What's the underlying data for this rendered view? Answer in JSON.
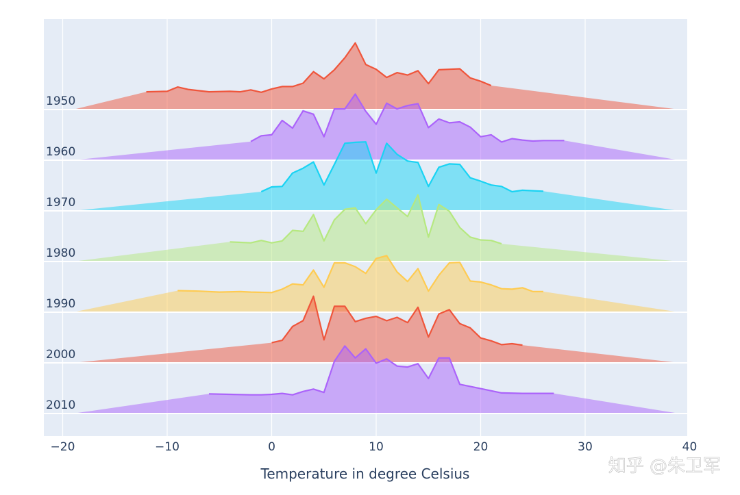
{
  "chart_data": {
    "type": "area",
    "xlabel": "Temperature in degree Celsius",
    "ylabel": "",
    "xlim": [
      -22,
      40
    ],
    "xticks": [
      -20,
      -10,
      0,
      10,
      20,
      30,
      40
    ],
    "xtick_labels": [
      "−20",
      "−10",
      "0",
      "10",
      "20",
      "30",
      "40"
    ],
    "grid": true,
    "ridge_envelope_x": [
      -19,
      39
    ],
    "series": [
      {
        "name": "1950",
        "color": "#EF553B",
        "x": [
          -12,
          -10,
          -9,
          -8,
          -6,
          -4,
          -3,
          -2,
          -1,
          0,
          1,
          2,
          3,
          4,
          5,
          6,
          7,
          8,
          9,
          10,
          11,
          12,
          13,
          14,
          15,
          16,
          17,
          18,
          19,
          20,
          21
        ],
        "y": [
          0.37,
          0.38,
          0.47,
          0.42,
          0.37,
          0.38,
          0.37,
          0.41,
          0.36,
          0.43,
          0.48,
          0.48,
          0.55,
          0.79,
          0.64,
          0.83,
          1.08,
          1.39,
          0.94,
          0.84,
          0.67,
          0.77,
          0.72,
          0.81,
          0.54,
          0.83,
          0.84,
          0.85,
          0.66,
          0.59,
          0.5
        ]
      },
      {
        "name": "1960",
        "color": "#AB63FA",
        "x": [
          -2,
          -1,
          0,
          1,
          2,
          3,
          4,
          5,
          6,
          7,
          8,
          9,
          10,
          11,
          12,
          13,
          14,
          15,
          16,
          17,
          18,
          19,
          20,
          21,
          22,
          23,
          24,
          25,
          26,
          27,
          28
        ],
        "y": [
          0.39,
          0.51,
          0.53,
          0.83,
          0.67,
          1.03,
          0.96,
          0.49,
          1.07,
          1.07,
          1.38,
          1.02,
          0.75,
          1.19,
          1.07,
          1.14,
          1.18,
          0.68,
          0.86,
          0.78,
          0.8,
          0.69,
          0.49,
          0.53,
          0.38,
          0.45,
          0.42,
          0.4,
          0.41,
          0.41,
          0.41
        ]
      },
      {
        "name": "1970",
        "color": "#19D3F3",
        "x": [
          -1,
          0,
          1,
          2,
          3,
          4,
          5,
          6,
          7,
          8,
          9,
          10,
          11,
          12,
          13,
          14,
          15,
          16,
          17,
          18,
          19,
          20,
          21,
          22,
          23,
          24,
          25,
          26
        ],
        "y": [
          0.4,
          0.5,
          0.51,
          0.79,
          0.89,
          1.02,
          0.54,
          0.97,
          1.41,
          1.43,
          1.44,
          0.79,
          1.41,
          1.18,
          1.04,
          1.01,
          0.51,
          0.91,
          0.98,
          0.97,
          0.69,
          0.62,
          0.54,
          0.51,
          0.4,
          0.43,
          0.42,
          0.41
        ]
      },
      {
        "name": "1980",
        "color": "#B6E880",
        "x": [
          -4,
          -3,
          -2,
          -1,
          0,
          1,
          2,
          3,
          4,
          5,
          6,
          7,
          8,
          9,
          10,
          11,
          12,
          13,
          14,
          15,
          16,
          17,
          18,
          19,
          20,
          21,
          22
        ],
        "y": [
          0.41,
          0.4,
          0.39,
          0.44,
          0.39,
          0.43,
          0.65,
          0.63,
          0.98,
          0.43,
          0.87,
          1.09,
          1.12,
          0.79,
          1.08,
          1.3,
          1.12,
          0.94,
          1.39,
          0.51,
          1.19,
          1.05,
          0.71,
          0.51,
          0.45,
          0.44,
          0.37
        ]
      },
      {
        "name": "1990",
        "color": "#FECB52",
        "x": [
          -9,
          -7,
          -5,
          -3,
          -2,
          0,
          1,
          2,
          3,
          4,
          5,
          6,
          7,
          8,
          9,
          10,
          11,
          12,
          13,
          14,
          15,
          16,
          17,
          18,
          19,
          20,
          21,
          22,
          23,
          24,
          25,
          26
        ],
        "y": [
          0.45,
          0.44,
          0.42,
          0.43,
          0.42,
          0.41,
          0.48,
          0.59,
          0.57,
          0.88,
          0.52,
          1.03,
          1.03,
          0.95,
          0.81,
          1.12,
          1.18,
          0.84,
          0.64,
          0.91,
          0.44,
          0.77,
          1.03,
          1.04,
          0.65,
          0.63,
          0.57,
          0.49,
          0.48,
          0.51,
          0.43,
          0.43
        ]
      },
      {
        "name": "2000",
        "color": "#EF553B",
        "x": [
          0,
          1,
          2,
          3,
          4,
          5,
          6,
          7,
          8,
          9,
          10,
          11,
          12,
          13,
          14,
          15,
          16,
          17,
          18,
          19,
          20,
          21,
          22,
          23,
          24
        ],
        "y": [
          0.42,
          0.47,
          0.76,
          0.88,
          1.39,
          0.48,
          1.18,
          1.18,
          0.86,
          0.93,
          0.97,
          0.88,
          0.95,
          0.84,
          1.16,
          0.54,
          1.02,
          1.11,
          0.82,
          0.73,
          0.52,
          0.46,
          0.38,
          0.4,
          0.37
        ]
      },
      {
        "name": "2010",
        "color": "#AB63FA",
        "x": [
          -6,
          -4,
          -2,
          -1,
          0,
          1,
          2,
          3,
          4,
          5,
          6,
          7,
          8,
          9,
          10,
          11,
          12,
          13,
          14,
          15,
          16,
          17,
          18,
          20,
          22,
          24,
          27
        ],
        "y": [
          0.41,
          0.4,
          0.39,
          0.39,
          0.4,
          0.42,
          0.39,
          0.46,
          0.51,
          0.44,
          1.09,
          1.41,
          1.16,
          1.35,
          1.05,
          1.14,
          0.99,
          0.97,
          1.04,
          0.73,
          1.16,
          1.16,
          0.61,
          0.52,
          0.43,
          0.42,
          0.42
        ]
      }
    ]
  },
  "watermark": {
    "text": "知乎 @朱卫军"
  }
}
